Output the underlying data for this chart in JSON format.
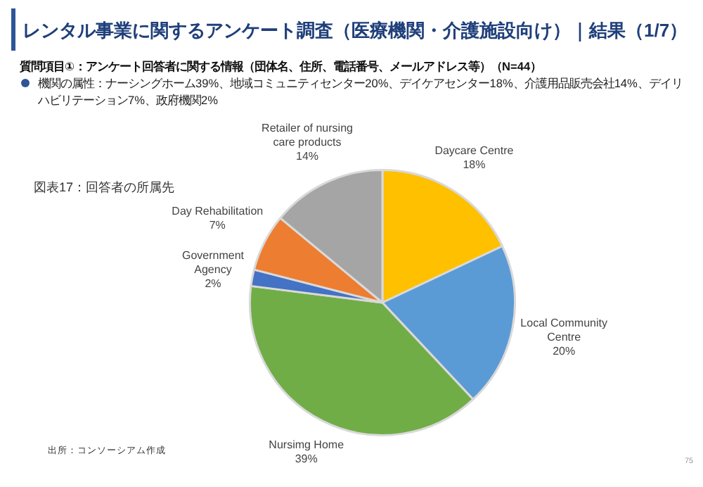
{
  "chart_data": {
    "type": "pie",
    "title": "レンタル事業に関するアンケート調査（医療機関・介護施設向け）｜結果（1/7）",
    "subtitle": "質問項目①：アンケート回答者に関する情報（団体名、住所、電話番号、メールアドレス等）（N=44）",
    "annotations": [
      "機関の属性：ナーシングホーム39%、地域コミュニティセンター20%、デイケアセンター18%、介護用品販売会社14%、デイリハビリテーション7%、政府機関2%",
      "図表17：回答者の所属先",
      "出所：コンソーシアム作成",
      "75"
    ],
    "categories": [
      "Daycare Centre",
      "Local Community Centre",
      "Nursimg Home",
      "Government Agency",
      "Day Rehabilitation",
      "Retailer of nursing care products"
    ],
    "values": [
      18,
      20,
      39,
      2,
      7,
      14
    ],
    "colors": [
      "#ffc000",
      "#5b9bd5",
      "#70ad47",
      "#4472c4",
      "#ed7d31",
      "#a5a5a5"
    ],
    "value_labels": [
      "18%",
      "20%",
      "39%",
      "2%",
      "7%",
      "14%"
    ],
    "legend": false
  }
}
